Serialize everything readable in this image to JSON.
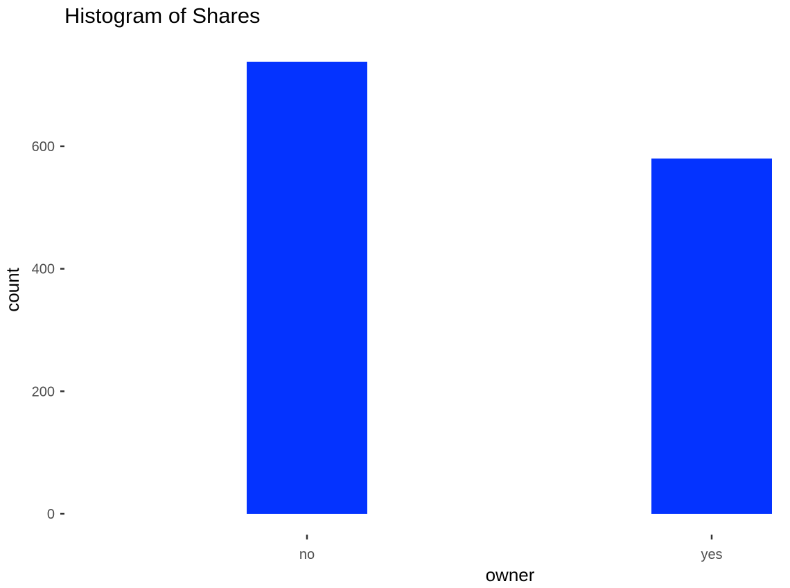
{
  "chart_data": {
    "type": "bar",
    "title": "Histogram of Shares",
    "xlabel": "owner",
    "ylabel": "count",
    "categories": [
      "no",
      "yes"
    ],
    "values": [
      738,
      580
    ],
    "ylim": [
      0,
      738
    ],
    "yticks": [
      0,
      200,
      400,
      600
    ],
    "grid": false,
    "bar_color": "#0433FF"
  }
}
